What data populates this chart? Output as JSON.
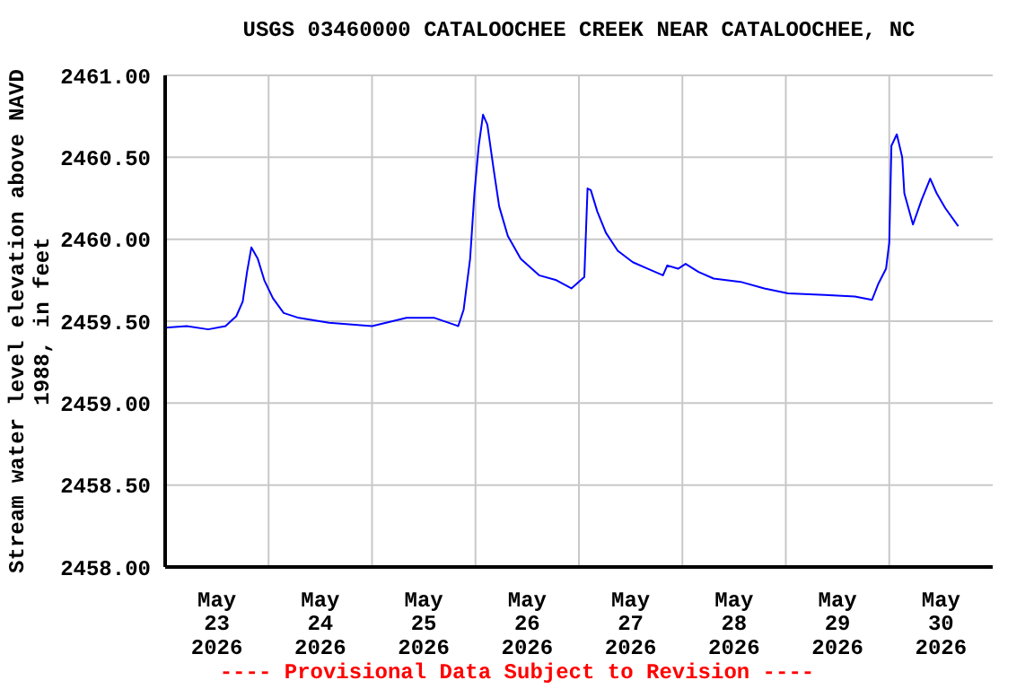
{
  "chart_data": {
    "type": "line",
    "title": "USGS 03460000 CATALOOCHEE CREEK NEAR CATALOOCHEE, NC",
    "ylabel": "Stream water level elevation above NAVD 1988, in feet",
    "annotations": [
      "---- Provisional Data Subject to Revision ----"
    ],
    "x": [
      "2026-05-23T00:00",
      "2026-05-23T05:00",
      "2026-05-23T10:00",
      "2026-05-23T14:00",
      "2026-05-23T16:30",
      "2026-05-23T18:00",
      "2026-05-23T19:00",
      "2026-05-23T20:00",
      "2026-05-23T21:30",
      "2026-05-23T23:00",
      "2026-05-24T01:00",
      "2026-05-24T03:30",
      "2026-05-24T07:00",
      "2026-05-24T14:00",
      "2026-05-25T00:00",
      "2026-05-25T08:00",
      "2026-05-25T14:30",
      "2026-05-25T20:00",
      "2026-05-25T21:15",
      "2026-05-25T22:45",
      "2026-05-25T23:45",
      "2026-05-26T00:45",
      "2026-05-26T01:45",
      "2026-05-26T02:45",
      "2026-05-26T04:15",
      "2026-05-26T05:30",
      "2026-05-26T07:30",
      "2026-05-26T10:30",
      "2026-05-26T14:45",
      "2026-05-26T18:45",
      "2026-05-26T22:15",
      "2026-05-27T01:15",
      "2026-05-27T02:00",
      "2026-05-27T02:45",
      "2026-05-27T04:15",
      "2026-05-27T06:15",
      "2026-05-27T09:00",
      "2026-05-27T12:30",
      "2026-05-27T16:00",
      "2026-05-27T19:30",
      "2026-05-27T20:30",
      "2026-05-27T23:00",
      "2026-05-28T00:45",
      "2026-05-28T03:45",
      "2026-05-28T07:15",
      "2026-05-28T13:30",
      "2026-05-28T19:00",
      "2026-05-29T00:30",
      "2026-05-29T09:00",
      "2026-05-29T16:00",
      "2026-05-29T20:00",
      "2026-05-29T21:30",
      "2026-05-29T23:15",
      "2026-05-30T00:00",
      "2026-05-30T00:30",
      "2026-05-30T01:45",
      "2026-05-30T03:00",
      "2026-05-30T03:30",
      "2026-05-30T05:30",
      "2026-05-30T07:30",
      "2026-05-30T09:30",
      "2026-05-30T11:00",
      "2026-05-30T13:00",
      "2026-05-30T16:00"
    ],
    "series": [
      {
        "color": "#0000ff",
        "values": [
          2459.46,
          2459.47,
          2459.45,
          2459.47,
          2459.53,
          2459.62,
          2459.8,
          2459.95,
          2459.88,
          2459.75,
          2459.64,
          2459.55,
          2459.52,
          2459.49,
          2459.47,
          2459.52,
          2459.52,
          2459.47,
          2459.57,
          2459.88,
          2460.28,
          2460.57,
          2460.76,
          2460.7,
          2460.42,
          2460.2,
          2460.02,
          2459.88,
          2459.78,
          2459.75,
          2459.7,
          2459.77,
          2460.31,
          2460.3,
          2460.17,
          2460.04,
          2459.93,
          2459.86,
          2459.82,
          2459.78,
          2459.84,
          2459.82,
          2459.85,
          2459.8,
          2459.76,
          2459.74,
          2459.7,
          2459.67,
          2459.66,
          2459.65,
          2459.63,
          2459.73,
          2459.82,
          2459.98,
          2460.57,
          2460.64,
          2460.5,
          2460.28,
          2460.09,
          2460.24,
          2460.37,
          2460.28,
          2460.19,
          2460.08
        ]
      }
    ],
    "xlim": [
      "2026-05-23T00:00",
      "2026-05-31T00:00"
    ],
    "xticks": [
      {
        "value": "2026-05-23T12:00",
        "label": "May 23 2026"
      },
      {
        "value": "2026-05-24T00:00",
        "label": null
      },
      {
        "value": "2026-05-24T12:00",
        "label": "May 24 2026"
      },
      {
        "value": "2026-05-25T00:00",
        "label": null
      },
      {
        "value": "2026-05-25T12:00",
        "label": "May 25 2026"
      },
      {
        "value": "2026-05-26T00:00",
        "label": null
      },
      {
        "value": "2026-05-26T12:00",
        "label": "May 26 2026"
      },
      {
        "value": "2026-05-27T00:00",
        "label": null
      },
      {
        "value": "2026-05-27T12:00",
        "label": "May 27 2026"
      },
      {
        "value": "2026-05-28T00:00",
        "label": null
      },
      {
        "value": "2026-05-28T12:00",
        "label": "May 28 2026"
      },
      {
        "value": "2026-05-29T00:00",
        "label": null
      },
      {
        "value": "2026-05-29T12:00",
        "label": "May 29 2026"
      },
      {
        "value": "2026-05-30T00:00",
        "label": null
      },
      {
        "value": "2026-05-30T12:00",
        "label": "May 30 2026"
      }
    ],
    "ylim": [
      2458,
      2461
    ],
    "yticks": [
      {
        "value": 2458,
        "label": "2458.00"
      },
      {
        "value": 2458.5,
        "label": "2458.50"
      },
      {
        "value": 2459,
        "label": "2459.00"
      },
      {
        "value": 2459.5,
        "label": "2459.50"
      },
      {
        "value": 2460,
        "label": "2460.00"
      },
      {
        "value": 2460.5,
        "label": "2460.50"
      },
      {
        "value": 2461,
        "label": "2461.00"
      }
    ],
    "grid": true,
    "legend": false,
    "marker": "none",
    "line_style": "solid"
  }
}
